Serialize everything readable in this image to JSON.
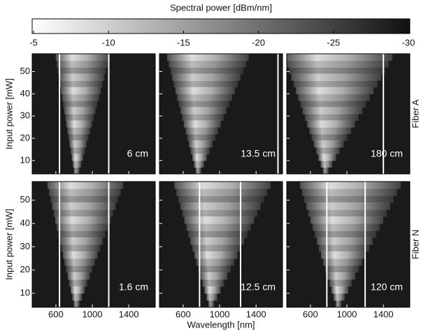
{
  "chart_data": {
    "type": "heatmap",
    "colorbar": {
      "title": "Spectral power [dBm/nm]",
      "lim": [
        -5,
        -30
      ],
      "ticks": [
        -5,
        -10,
        -15,
        -20,
        -25,
        -30
      ]
    },
    "x_label": "Wavelength [nm]",
    "xlim": [
      340,
      1690
    ],
    "xticks": [
      600,
      1000,
      1400
    ],
    "ylim": [
      4,
      58
    ],
    "yticks": [
      10,
      20,
      30,
      40,
      50
    ],
    "rows": [
      {
        "label": "Fiber A",
        "y_label": "Input power [mW]",
        "panels": [
          "6 cm",
          "13.5 cm",
          "180 cm"
        ]
      },
      {
        "label": "Fiber N",
        "y_label": "Input power [mW]",
        "panels": [
          "1.6 cm",
          "12.5 cm",
          "120 cm"
        ]
      }
    ]
  }
}
